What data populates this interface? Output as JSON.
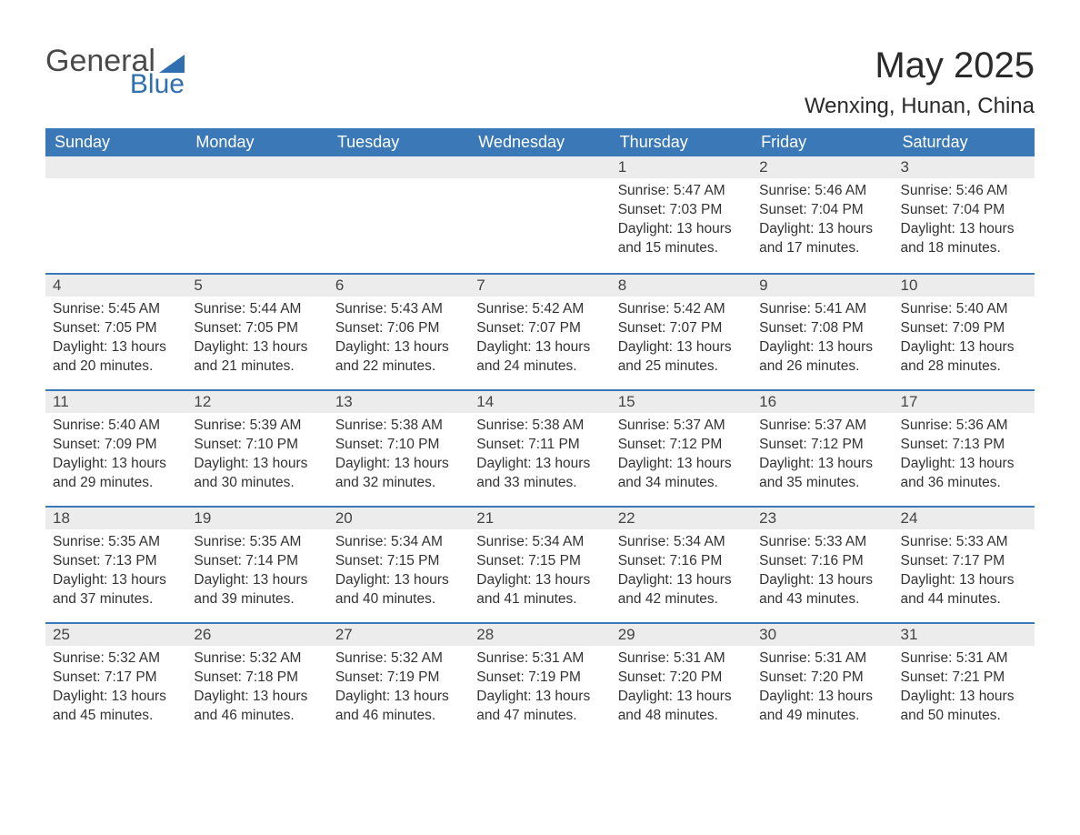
{
  "logo": {
    "text_general": "General",
    "text_blue": "Blue"
  },
  "header": {
    "month_title": "May 2025",
    "location": "Wenxing, Hunan, China"
  },
  "colors": {
    "header_bg": "#3a78b7",
    "header_text": "#ffffff",
    "day_number_bg": "#ececec",
    "day_border": "#3a78b7",
    "logo_blue": "#2f6fb0",
    "body_text": "#333333"
  },
  "calendar": {
    "days_of_week": [
      "Sunday",
      "Monday",
      "Tuesday",
      "Wednesday",
      "Thursday",
      "Friday",
      "Saturday"
    ],
    "weeks": [
      [
        {
          "empty": true
        },
        {
          "empty": true
        },
        {
          "empty": true
        },
        {
          "empty": true
        },
        {
          "day": "1",
          "sunrise": "5:47 AM",
          "sunset": "7:03 PM",
          "daylight": "13 hours and 15 minutes."
        },
        {
          "day": "2",
          "sunrise": "5:46 AM",
          "sunset": "7:04 PM",
          "daylight": "13 hours and 17 minutes."
        },
        {
          "day": "3",
          "sunrise": "5:46 AM",
          "sunset": "7:04 PM",
          "daylight": "13 hours and 18 minutes."
        }
      ],
      [
        {
          "day": "4",
          "sunrise": "5:45 AM",
          "sunset": "7:05 PM",
          "daylight": "13 hours and 20 minutes."
        },
        {
          "day": "5",
          "sunrise": "5:44 AM",
          "sunset": "7:05 PM",
          "daylight": "13 hours and 21 minutes."
        },
        {
          "day": "6",
          "sunrise": "5:43 AM",
          "sunset": "7:06 PM",
          "daylight": "13 hours and 22 minutes."
        },
        {
          "day": "7",
          "sunrise": "5:42 AM",
          "sunset": "7:07 PM",
          "daylight": "13 hours and 24 minutes."
        },
        {
          "day": "8",
          "sunrise": "5:42 AM",
          "sunset": "7:07 PM",
          "daylight": "13 hours and 25 minutes."
        },
        {
          "day": "9",
          "sunrise": "5:41 AM",
          "sunset": "7:08 PM",
          "daylight": "13 hours and 26 minutes."
        },
        {
          "day": "10",
          "sunrise": "5:40 AM",
          "sunset": "7:09 PM",
          "daylight": "13 hours and 28 minutes."
        }
      ],
      [
        {
          "day": "11",
          "sunrise": "5:40 AM",
          "sunset": "7:09 PM",
          "daylight": "13 hours and 29 minutes."
        },
        {
          "day": "12",
          "sunrise": "5:39 AM",
          "sunset": "7:10 PM",
          "daylight": "13 hours and 30 minutes."
        },
        {
          "day": "13",
          "sunrise": "5:38 AM",
          "sunset": "7:10 PM",
          "daylight": "13 hours and 32 minutes."
        },
        {
          "day": "14",
          "sunrise": "5:38 AM",
          "sunset": "7:11 PM",
          "daylight": "13 hours and 33 minutes."
        },
        {
          "day": "15",
          "sunrise": "5:37 AM",
          "sunset": "7:12 PM",
          "daylight": "13 hours and 34 minutes."
        },
        {
          "day": "16",
          "sunrise": "5:37 AM",
          "sunset": "7:12 PM",
          "daylight": "13 hours and 35 minutes."
        },
        {
          "day": "17",
          "sunrise": "5:36 AM",
          "sunset": "7:13 PM",
          "daylight": "13 hours and 36 minutes."
        }
      ],
      [
        {
          "day": "18",
          "sunrise": "5:35 AM",
          "sunset": "7:13 PM",
          "daylight": "13 hours and 37 minutes."
        },
        {
          "day": "19",
          "sunrise": "5:35 AM",
          "sunset": "7:14 PM",
          "daylight": "13 hours and 39 minutes."
        },
        {
          "day": "20",
          "sunrise": "5:34 AM",
          "sunset": "7:15 PM",
          "daylight": "13 hours and 40 minutes."
        },
        {
          "day": "21",
          "sunrise": "5:34 AM",
          "sunset": "7:15 PM",
          "daylight": "13 hours and 41 minutes."
        },
        {
          "day": "22",
          "sunrise": "5:34 AM",
          "sunset": "7:16 PM",
          "daylight": "13 hours and 42 minutes."
        },
        {
          "day": "23",
          "sunrise": "5:33 AM",
          "sunset": "7:16 PM",
          "daylight": "13 hours and 43 minutes."
        },
        {
          "day": "24",
          "sunrise": "5:33 AM",
          "sunset": "7:17 PM",
          "daylight": "13 hours and 44 minutes."
        }
      ],
      [
        {
          "day": "25",
          "sunrise": "5:32 AM",
          "sunset": "7:17 PM",
          "daylight": "13 hours and 45 minutes."
        },
        {
          "day": "26",
          "sunrise": "5:32 AM",
          "sunset": "7:18 PM",
          "daylight": "13 hours and 46 minutes."
        },
        {
          "day": "27",
          "sunrise": "5:32 AM",
          "sunset": "7:19 PM",
          "daylight": "13 hours and 46 minutes."
        },
        {
          "day": "28",
          "sunrise": "5:31 AM",
          "sunset": "7:19 PM",
          "daylight": "13 hours and 47 minutes."
        },
        {
          "day": "29",
          "sunrise": "5:31 AM",
          "sunset": "7:20 PM",
          "daylight": "13 hours and 48 minutes."
        },
        {
          "day": "30",
          "sunrise": "5:31 AM",
          "sunset": "7:20 PM",
          "daylight": "13 hours and 49 minutes."
        },
        {
          "day": "31",
          "sunrise": "5:31 AM",
          "sunset": "7:21 PM",
          "daylight": "13 hours and 50 minutes."
        }
      ]
    ],
    "labels": {
      "sunrise_prefix": "Sunrise: ",
      "sunset_prefix": "Sunset: ",
      "daylight_prefix": "Daylight: "
    }
  }
}
